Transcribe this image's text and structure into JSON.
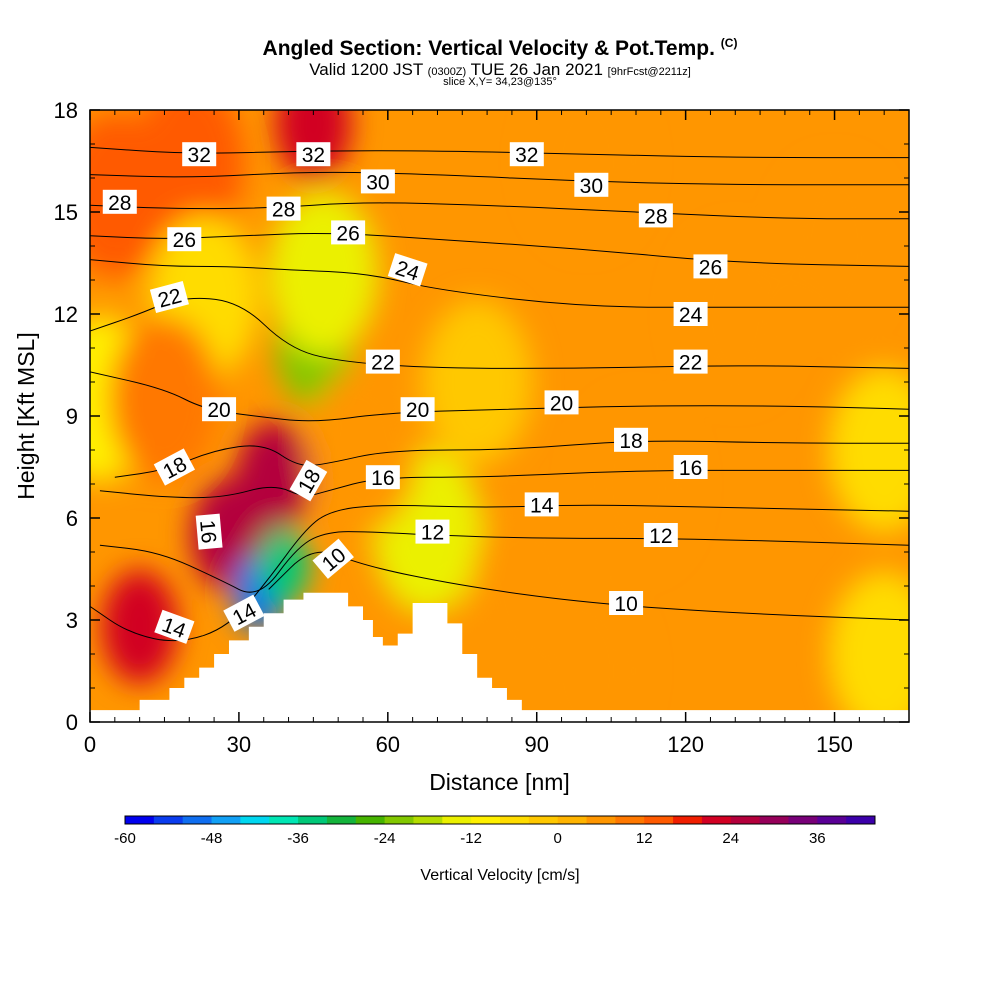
{
  "title": {
    "main": "Angled Section: Vertical Velocity & Pot.Temp.",
    "copyright": "(C)",
    "valid_prefix": "Valid 1200 JST",
    "utc": "(0300Z)",
    "date": "TUE 26 Jan 2021",
    "forecast": "[9hrFcst@2211z]",
    "slice": "slice X,Y= 34,23@135°"
  },
  "chart_data": {
    "type": "heatmap",
    "xlabel": "Distance [nm]",
    "ylabel": "Height [Kft MSL]",
    "xlim": [
      0,
      165
    ],
    "ylim": [
      0,
      18
    ],
    "x_ticks": [
      0,
      30,
      60,
      90,
      120,
      150
    ],
    "y_ticks": [
      0,
      3,
      6,
      9,
      12,
      15,
      18
    ],
    "colorbar": {
      "title": "Vertical Velocity [cm/s]",
      "tick_labels": [
        "-60",
        "-48",
        "-36",
        "-24",
        "-12",
        "0",
        "12",
        "24",
        "36"
      ],
      "tick_values": [
        -60,
        -48,
        -36,
        -24,
        -12,
        0,
        12,
        24,
        36
      ],
      "range": [
        -60,
        44
      ],
      "step": 4,
      "colors": [
        "#0000ee",
        "#0a3cee",
        "#0f6ef0",
        "#11a0f5",
        "#00d7f0",
        "#00e6b4",
        "#00c878",
        "#14b43c",
        "#46b400",
        "#82c800",
        "#b4dc00",
        "#ebf000",
        "#fff000",
        "#ffdc00",
        "#ffc800",
        "#ffb400",
        "#ff9600",
        "#ff7800",
        "#ff5a00",
        "#f01e00",
        "#d20023",
        "#b4003c",
        "#96005a",
        "#780078",
        "#5a0096",
        "#3c00aa"
      ]
    },
    "velocity_field": [
      {
        "x": 10,
        "y": 2.8,
        "value": 22
      },
      {
        "x": 28,
        "y": 5.5,
        "value": 26
      },
      {
        "x": 37,
        "y": 7.2,
        "value": 24
      },
      {
        "x": 34,
        "y": 3.8,
        "value": -52
      },
      {
        "x": 39,
        "y": 4.6,
        "value": -36
      },
      {
        "x": 45,
        "y": 11.0,
        "value": -24
      },
      {
        "x": 47,
        "y": 13.2,
        "value": -14
      },
      {
        "x": 45,
        "y": 17.6,
        "value": 20
      },
      {
        "x": 20,
        "y": 16.5,
        "value": 14
      },
      {
        "x": 5,
        "y": 15.5,
        "value": 12
      },
      {
        "x": 2,
        "y": 9.5,
        "value": -10
      },
      {
        "x": 23,
        "y": 12.5,
        "value": -8
      },
      {
        "x": 68,
        "y": 5.6,
        "value": -14
      },
      {
        "x": 78,
        "y": 10.0,
        "value": -4
      },
      {
        "x": 110,
        "y": 7.0,
        "value": 4
      },
      {
        "x": 100,
        "y": 1.5,
        "value": 4
      },
      {
        "x": 150,
        "y": 14.0,
        "value": 4
      },
      {
        "x": 160,
        "y": 8.0,
        "value": -6
      },
      {
        "x": 160,
        "y": 2.0,
        "value": -8
      },
      {
        "x": 130,
        "y": 12.0,
        "value": 6
      },
      {
        "x": 88,
        "y": 4.0,
        "value": 6
      },
      {
        "x": 15,
        "y": 9.5,
        "value": 10
      },
      {
        "x": 55,
        "y": 8.0,
        "value": 6
      },
      {
        "x": 100,
        "y": 16.5,
        "value": 4
      }
    ],
    "terrain": [
      {
        "x": 0,
        "y": 0.35
      },
      {
        "x": 10,
        "y": 0.35
      },
      {
        "x": 10,
        "y": 0.65
      },
      {
        "x": 16,
        "y": 0.65
      },
      {
        "x": 16,
        "y": 1.0
      },
      {
        "x": 19,
        "y": 1.0
      },
      {
        "x": 19,
        "y": 1.3
      },
      {
        "x": 22,
        "y": 1.3
      },
      {
        "x": 22,
        "y": 1.6
      },
      {
        "x": 25,
        "y": 1.6
      },
      {
        "x": 25,
        "y": 2.0
      },
      {
        "x": 28,
        "y": 2.0
      },
      {
        "x": 28,
        "y": 2.4
      },
      {
        "x": 32,
        "y": 2.4
      },
      {
        "x": 32,
        "y": 2.8
      },
      {
        "x": 35,
        "y": 2.8
      },
      {
        "x": 35,
        "y": 3.2
      },
      {
        "x": 39,
        "y": 3.2
      },
      {
        "x": 39,
        "y": 3.6
      },
      {
        "x": 43,
        "y": 3.6
      },
      {
        "x": 43,
        "y": 3.8
      },
      {
        "x": 52,
        "y": 3.8
      },
      {
        "x": 52,
        "y": 3.4
      },
      {
        "x": 55,
        "y": 3.4
      },
      {
        "x": 55,
        "y": 3.0
      },
      {
        "x": 57,
        "y": 3.0
      },
      {
        "x": 57,
        "y": 2.5
      },
      {
        "x": 59,
        "y": 2.5
      },
      {
        "x": 59,
        "y": 2.25
      },
      {
        "x": 62,
        "y": 2.25
      },
      {
        "x": 62,
        "y": 2.6
      },
      {
        "x": 65,
        "y": 2.6
      },
      {
        "x": 65,
        "y": 3.5
      },
      {
        "x": 72,
        "y": 3.5
      },
      {
        "x": 72,
        "y": 2.9
      },
      {
        "x": 75,
        "y": 2.9
      },
      {
        "x": 75,
        "y": 2.0
      },
      {
        "x": 78,
        "y": 2.0
      },
      {
        "x": 78,
        "y": 1.3
      },
      {
        "x": 81,
        "y": 1.3
      },
      {
        "x": 81,
        "y": 1.0
      },
      {
        "x": 84,
        "y": 1.0
      },
      {
        "x": 84,
        "y": 0.65
      },
      {
        "x": 87,
        "y": 0.65
      },
      {
        "x": 87,
        "y": 0.35
      },
      {
        "x": 165,
        "y": 0.35
      }
    ],
    "theta_contours": [
      {
        "level": 10,
        "points": [
          [
            36,
            3.9
          ],
          [
            45,
            5.2
          ],
          [
            55,
            4.6
          ],
          [
            75,
            4.0
          ],
          [
            100,
            3.5
          ],
          [
            130,
            3.2
          ],
          [
            165,
            3.0
          ]
        ]
      },
      {
        "level": 12,
        "points": [
          [
            2,
            5.2
          ],
          [
            14,
            5.0
          ],
          [
            26,
            4.2
          ],
          [
            34,
            3.6
          ],
          [
            42,
            5.2
          ],
          [
            48,
            5.6
          ],
          [
            56,
            5.6
          ],
          [
            68,
            5.5
          ],
          [
            90,
            5.4
          ],
          [
            120,
            5.4
          ],
          [
            165,
            5.2
          ]
        ]
      },
      {
        "level": 14,
        "points": [
          [
            0,
            3.4
          ],
          [
            8,
            2.6
          ],
          [
            18,
            2.3
          ],
          [
            28,
            2.8
          ],
          [
            36,
            4.2
          ],
          [
            43,
            5.6
          ],
          [
            48,
            6.2
          ],
          [
            58,
            6.4
          ],
          [
            80,
            6.3
          ],
          [
            100,
            6.4
          ],
          [
            130,
            6.3
          ],
          [
            165,
            6.2
          ]
        ]
      },
      {
        "level": 16,
        "points": [
          [
            2,
            6.8
          ],
          [
            16,
            6.6
          ],
          [
            27,
            6.6
          ],
          [
            37,
            7.0
          ],
          [
            43,
            6.6
          ],
          [
            48,
            6.8
          ],
          [
            58,
            7.2
          ],
          [
            80,
            7.2
          ],
          [
            110,
            7.4
          ],
          [
            140,
            7.4
          ],
          [
            165,
            7.4
          ]
        ]
      },
      {
        "level": 18,
        "points": [
          [
            5,
            7.2
          ],
          [
            15,
            7.4
          ],
          [
            25,
            8.0
          ],
          [
            35,
            8.2
          ],
          [
            42,
            7.5
          ],
          [
            48,
            7.6
          ],
          [
            60,
            8.0
          ],
          [
            85,
            8.0
          ],
          [
            110,
            8.3
          ],
          [
            140,
            8.2
          ],
          [
            165,
            8.2
          ]
        ]
      },
      {
        "level": 20,
        "points": [
          [
            0,
            10.3
          ],
          [
            15,
            9.8
          ],
          [
            23,
            9.2
          ],
          [
            33,
            9.0
          ],
          [
            45,
            8.8
          ],
          [
            60,
            9.1
          ],
          [
            85,
            9.2
          ],
          [
            110,
            9.3
          ],
          [
            140,
            9.3
          ],
          [
            165,
            9.2
          ]
        ]
      },
      {
        "level": 22,
        "points": [
          [
            0,
            11.5
          ],
          [
            10,
            12.0
          ],
          [
            18,
            12.5
          ],
          [
            30,
            12.4
          ],
          [
            40,
            11.0
          ],
          [
            50,
            10.6
          ],
          [
            70,
            10.4
          ],
          [
            100,
            10.4
          ],
          [
            130,
            10.5
          ],
          [
            165,
            10.4
          ]
        ]
      },
      {
        "level": 24,
        "points": [
          [
            0,
            13.6
          ],
          [
            15,
            13.4
          ],
          [
            28,
            13.4
          ],
          [
            40,
            13.3
          ],
          [
            56,
            13.2
          ],
          [
            70,
            12.7
          ],
          [
            100,
            12.2
          ],
          [
            130,
            12.2
          ],
          [
            165,
            12.2
          ]
        ]
      },
      {
        "level": 26,
        "points": [
          [
            0,
            14.3
          ],
          [
            15,
            14.2
          ],
          [
            30,
            14.3
          ],
          [
            48,
            14.4
          ],
          [
            70,
            14.2
          ],
          [
            100,
            13.9
          ],
          [
            130,
            13.5
          ],
          [
            165,
            13.4
          ]
        ]
      },
      {
        "level": 28,
        "points": [
          [
            0,
            15.2
          ],
          [
            15,
            15.1
          ],
          [
            35,
            15.1
          ],
          [
            55,
            15.3
          ],
          [
            80,
            15.2
          ],
          [
            110,
            15.0
          ],
          [
            140,
            14.8
          ],
          [
            165,
            14.8
          ]
        ]
      },
      {
        "level": 30,
        "points": [
          [
            0,
            16.1
          ],
          [
            20,
            16.0
          ],
          [
            45,
            16.2
          ],
          [
            70,
            16.1
          ],
          [
            100,
            15.9
          ],
          [
            130,
            15.8
          ],
          [
            165,
            15.8
          ]
        ]
      },
      {
        "level": 32,
        "points": [
          [
            0,
            16.9
          ],
          [
            20,
            16.7
          ],
          [
            45,
            16.8
          ],
          [
            70,
            16.8
          ],
          [
            100,
            16.7
          ],
          [
            130,
            16.6
          ],
          [
            165,
            16.6
          ]
        ]
      }
    ],
    "contour_labels": [
      {
        "x": 22,
        "y": 16.7,
        "text": "32",
        "angle": 0
      },
      {
        "x": 45,
        "y": 16.7,
        "text": "32",
        "angle": 0
      },
      {
        "x": 88,
        "y": 16.7,
        "text": "32",
        "angle": 0
      },
      {
        "x": 58,
        "y": 15.9,
        "text": "30",
        "angle": 0
      },
      {
        "x": 101,
        "y": 15.8,
        "text": "30",
        "angle": 0
      },
      {
        "x": 6,
        "y": 15.3,
        "text": "28",
        "angle": 0
      },
      {
        "x": 39,
        "y": 15.1,
        "text": "28",
        "angle": 0
      },
      {
        "x": 114,
        "y": 14.9,
        "text": "28",
        "angle": 0
      },
      {
        "x": 19,
        "y": 14.2,
        "text": "26",
        "angle": 0
      },
      {
        "x": 52,
        "y": 14.4,
        "text": "26",
        "angle": 0
      },
      {
        "x": 125,
        "y": 13.4,
        "text": "26",
        "angle": 0
      },
      {
        "x": 64,
        "y": 13.3,
        "text": "24",
        "angle": 18
      },
      {
        "x": 121,
        "y": 12.0,
        "text": "24",
        "angle": 0
      },
      {
        "x": 16,
        "y": 12.5,
        "text": "22",
        "angle": -15
      },
      {
        "x": 59,
        "y": 10.6,
        "text": "22",
        "angle": 0
      },
      {
        "x": 121,
        "y": 10.6,
        "text": "22",
        "angle": 0
      },
      {
        "x": 26,
        "y": 9.2,
        "text": "20",
        "angle": 0
      },
      {
        "x": 66,
        "y": 9.2,
        "text": "20",
        "angle": 0
      },
      {
        "x": 95,
        "y": 9.4,
        "text": "20",
        "angle": 0
      },
      {
        "x": 17,
        "y": 7.5,
        "text": "18",
        "angle": -28
      },
      {
        "x": 44,
        "y": 7.1,
        "text": "18",
        "angle": -60
      },
      {
        "x": 109,
        "y": 8.3,
        "text": "18",
        "angle": 0
      },
      {
        "x": 59,
        "y": 7.2,
        "text": "16",
        "angle": 0
      },
      {
        "x": 121,
        "y": 7.5,
        "text": "16",
        "angle": 0
      },
      {
        "x": 24,
        "y": 5.6,
        "text": "16",
        "angle": 85
      },
      {
        "x": 91,
        "y": 6.4,
        "text": "14",
        "angle": 0
      },
      {
        "x": 17,
        "y": 2.8,
        "text": "14",
        "angle": 20
      },
      {
        "x": 31,
        "y": 3.2,
        "text": "14",
        "angle": -28
      },
      {
        "x": 69,
        "y": 5.6,
        "text": "12",
        "angle": 0
      },
      {
        "x": 115,
        "y": 5.5,
        "text": "12",
        "angle": 0
      },
      {
        "x": 49,
        "y": 4.8,
        "text": "10",
        "angle": -40
      },
      {
        "x": 108,
        "y": 3.5,
        "text": "10",
        "angle": 0
      }
    ]
  }
}
